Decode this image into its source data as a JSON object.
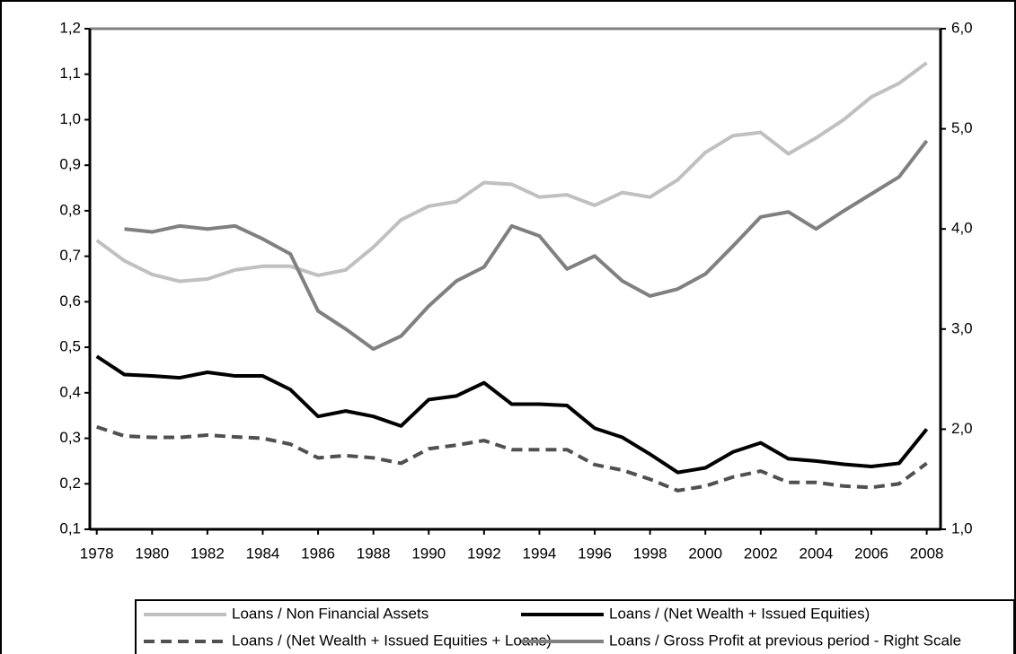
{
  "chart_data": {
    "type": "line",
    "x": [
      1978,
      1979,
      1980,
      1981,
      1982,
      1983,
      1984,
      1985,
      1986,
      1987,
      1988,
      1989,
      1990,
      1991,
      1992,
      1993,
      1994,
      1995,
      1996,
      1997,
      1998,
      1999,
      2000,
      2001,
      2002,
      2003,
      2004,
      2005,
      2006,
      2007,
      2008
    ],
    "xlim": [
      1977.75,
      2008.5
    ],
    "xticks": [
      1978,
      1980,
      1982,
      1984,
      1986,
      1988,
      1990,
      1992,
      1994,
      1996,
      1998,
      2000,
      2002,
      2004,
      2006,
      2008
    ],
    "ylim": [
      0.1,
      1.2
    ],
    "yticks": [
      {
        "value": 0.1,
        "label": "0,1"
      },
      {
        "value": 0.2,
        "label": "0,2"
      },
      {
        "value": 0.3,
        "label": "0,3"
      },
      {
        "value": 0.4,
        "label": "0,4"
      },
      {
        "value": 0.5,
        "label": "0,5"
      },
      {
        "value": 0.6,
        "label": "0,6"
      },
      {
        "value": 0.7,
        "label": "0,7"
      },
      {
        "value": 0.8,
        "label": "0,8"
      },
      {
        "value": 0.9,
        "label": "0,9"
      },
      {
        "value": 1.0,
        "label": "1,0"
      },
      {
        "value": 1.1,
        "label": "1,1"
      },
      {
        "value": 1.2,
        "label": "1,2"
      }
    ],
    "y2lim": [
      1.0,
      6.0
    ],
    "y2ticks": [
      {
        "value": 1.0,
        "label": "1,0"
      },
      {
        "value": 2.0,
        "label": "2,0"
      },
      {
        "value": 3.0,
        "label": "3,0"
      },
      {
        "value": 4.0,
        "label": "4,0"
      },
      {
        "value": 5.0,
        "label": "5,0"
      },
      {
        "value": 6.0,
        "label": "6,0"
      }
    ],
    "series": [
      {
        "name": "Loans / Non Financial Assets",
        "color": "#c0c0c0",
        "style": "solid",
        "values": [
          0.735,
          0.69,
          0.66,
          0.645,
          0.65,
          0.67,
          0.678,
          0.678,
          0.658,
          0.67,
          0.72,
          0.78,
          0.81,
          0.82,
          0.862,
          0.858,
          0.83,
          0.835,
          0.812,
          0.84,
          0.83,
          0.868,
          0.928,
          0.965,
          0.972,
          0.925,
          0.96,
          1.0,
          1.05,
          1.08,
          1.125
        ]
      },
      {
        "name": "Loans / (Net Wealth + Issued Equities)",
        "color": "#000000",
        "style": "solid",
        "values": [
          0.48,
          0.44,
          0.437,
          0.433,
          0.445,
          0.437,
          0.437,
          0.407,
          0.348,
          0.36,
          0.348,
          0.327,
          0.385,
          0.393,
          0.422,
          0.375,
          0.375,
          0.372,
          0.322,
          0.302,
          0.265,
          0.225,
          0.235,
          0.27,
          0.29,
          0.255,
          0.25,
          0.243,
          0.238,
          0.245,
          0.32
        ]
      },
      {
        "name": "Loans / (Net Wealth + Issued Equities + Loans)",
        "color": "#505050",
        "style": "dashed",
        "values": [
          0.325,
          0.305,
          0.302,
          0.302,
          0.307,
          0.303,
          0.3,
          0.287,
          0.257,
          0.262,
          0.257,
          0.245,
          0.277,
          0.285,
          0.295,
          0.275,
          0.275,
          0.275,
          0.242,
          0.23,
          0.21,
          0.185,
          0.195,
          0.215,
          0.228,
          0.203,
          0.203,
          0.195,
          0.192,
          0.2,
          0.245
        ]
      },
      {
        "name": "Loans / Gross Profit at previous period - Right Scale",
        "color": "#808080",
        "style": "solid",
        "axis": "y2",
        "values": [
          null,
          4.0,
          3.97,
          4.03,
          4.0,
          4.03,
          3.9,
          3.75,
          3.18,
          3.0,
          2.8,
          2.93,
          3.23,
          3.48,
          3.62,
          4.03,
          3.93,
          3.6,
          3.73,
          3.48,
          3.33,
          3.4,
          3.55,
          3.83,
          4.12,
          4.17,
          4.0,
          4.18,
          4.35,
          4.52,
          4.88
        ]
      }
    ]
  }
}
